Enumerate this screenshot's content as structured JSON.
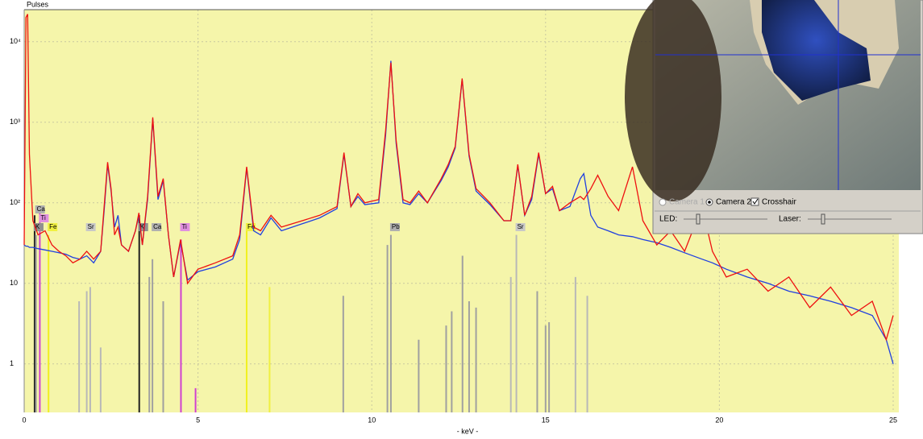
{
  "chart_data": {
    "type": "line",
    "y_label": "Pulses",
    "x_label": "- keV -",
    "log_y": true,
    "grid": true,
    "background": "#f5f5aa",
    "xlim": [
      0,
      25
    ],
    "xticks": [
      0,
      5,
      10,
      15,
      20,
      25
    ],
    "ylim": [
      0.25,
      25000
    ],
    "yticks": [
      1,
      10,
      {
        "value": 100,
        "label": "10²"
      },
      {
        "value": 1000,
        "label": "10³"
      },
      {
        "value": 10000,
        "label": "10⁴"
      }
    ],
    "x": [
      0,
      0.05,
      0.1,
      0.15,
      0.25,
      0.4,
      0.6,
      0.8,
      1.0,
      1.2,
      1.4,
      1.6,
      1.8,
      2.0,
      2.2,
      2.3,
      2.4,
      2.5,
      2.6,
      2.7,
      2.8,
      3.0,
      3.2,
      3.3,
      3.4,
      3.55,
      3.7,
      3.85,
      4.0,
      4.15,
      4.3,
      4.5,
      4.7,
      5.0,
      5.5,
      6.0,
      6.2,
      6.4,
      6.6,
      6.8,
      7.1,
      7.4,
      8.0,
      8.5,
      9.0,
      9.2,
      9.4,
      9.6,
      9.8,
      10.2,
      10.4,
      10.55,
      10.7,
      10.9,
      11.1,
      11.35,
      11.6,
      12.0,
      12.2,
      12.4,
      12.6,
      12.8,
      13.0,
      13.4,
      13.8,
      14.0,
      14.2,
      14.4,
      14.6,
      14.8,
      15.0,
      15.2,
      15.4,
      15.7,
      16.0,
      16.1,
      16.3,
      16.5,
      16.8,
      17.1,
      17.5,
      17.8,
      18.2,
      18.6,
      19.0,
      19.5,
      19.8,
      20.2,
      20.8,
      21.4,
      22.0,
      22.6,
      23.2,
      23.8,
      24.4,
      24.8,
      25.0
    ],
    "series": [
      {
        "color": "#2040e0",
        "values": [
          30,
          29,
          29,
          28,
          28,
          27,
          26,
          25,
          24,
          23,
          21,
          20,
          22,
          18,
          25,
          80,
          300,
          140,
          50,
          70,
          30,
          25,
          45,
          70,
          30,
          110,
          1100,
          110,
          190,
          40,
          12,
          33,
          11,
          14,
          16,
          20,
          35,
          270,
          45,
          40,
          65,
          45,
          55,
          65,
          85,
          400,
          90,
          120,
          95,
          100,
          700,
          5800,
          550,
          100,
          95,
          130,
          100,
          190,
          280,
          480,
          3400,
          380,
          140,
          95,
          60,
          60,
          290,
          70,
          110,
          400,
          130,
          150,
          80,
          90,
          200,
          230,
          70,
          50,
          45,
          40,
          38,
          35,
          32,
          28,
          24,
          20,
          18,
          15,
          12,
          10,
          8,
          7,
          6,
          5,
          4,
          2,
          1
        ]
      },
      {
        "color": "#ee1010",
        "values": [
          30,
          20000,
          22000,
          400,
          60,
          40,
          45,
          30,
          25,
          22,
          18,
          20,
          25,
          20,
          25,
          90,
          320,
          150,
          40,
          50,
          30,
          25,
          45,
          75,
          30,
          120,
          1150,
          120,
          200,
          40,
          12,
          35,
          10,
          15,
          18,
          22,
          40,
          280,
          50,
          45,
          70,
          50,
          60,
          70,
          90,
          420,
          90,
          130,
          100,
          110,
          800,
          5500,
          600,
          110,
          100,
          140,
          100,
          200,
          300,
          500,
          3500,
          400,
          150,
          100,
          60,
          60,
          300,
          70,
          120,
          420,
          130,
          160,
          80,
          100,
          120,
          110,
          150,
          220,
          120,
          80,
          280,
          60,
          30,
          45,
          25,
          90,
          25,
          12,
          15,
          8,
          12,
          5,
          9,
          4,
          6,
          2,
          4
        ]
      }
    ],
    "lines": [
      {
        "x": 0.3,
        "value": 70,
        "color": "#202020",
        "label": "K",
        "label_color": "#909090"
      },
      {
        "x": 0.45,
        "value": 90,
        "color": "#d040d0",
        "label": "Ti",
        "label_color": "#e090e0"
      },
      {
        "x": 0.34,
        "value": 40,
        "color": "#a0a0a0",
        "label": "Ca",
        "label_color": "#b0b0b0"
      },
      {
        "x": 0.7,
        "value": 40,
        "color": "#f0f020",
        "label": "Fe",
        "label_color": "#f0f040"
      },
      {
        "x": 1.8,
        "value": 8,
        "color": "#b8b8b8",
        "label": "Sr",
        "label_color": "#c8c8c8"
      },
      {
        "x": 3.31,
        "value": 70,
        "color": "#202020",
        "label": "K",
        "label_color": "#909090"
      },
      {
        "x": 3.69,
        "value": 20,
        "color": "#a0a0a0",
        "label": "Ca",
        "label_color": "#b0b0b0"
      },
      {
        "x": 4.51,
        "value": 35,
        "color": "#d040d0",
        "label": "Ti",
        "label_color": "#e090e0"
      },
      {
        "x": 6.4,
        "value": 50,
        "color": "#f0f020",
        "label": "Fe",
        "label_color": "#f0f040"
      },
      {
        "x": 10.55,
        "value": 40,
        "color": "#a0a0a0",
        "label": "Pb",
        "label_color": "#b0b0b0"
      },
      {
        "x": 14.16,
        "value": 40,
        "color": "#b8b8b8",
        "label": "Sr",
        "label_color": "#c8c8c8"
      },
      {
        "x": 1.58,
        "value": 6,
        "color": "#b8b8b8"
      },
      {
        "x": 1.9,
        "value": 9,
        "color": "#b8b8b8"
      },
      {
        "x": 2.2,
        "value": 1.6,
        "color": "#b8b8b8"
      },
      {
        "x": 3.6,
        "value": 12,
        "color": "#a0a0a0"
      },
      {
        "x": 4.0,
        "value": 6,
        "color": "#a0a0a0"
      },
      {
        "x": 4.93,
        "value": 0.5,
        "color": "#d040d0"
      },
      {
        "x": 7.06,
        "value": 9,
        "color": "#f0f040"
      },
      {
        "x": 9.18,
        "value": 7,
        "color": "#a0a0a0"
      },
      {
        "x": 10.45,
        "value": 30,
        "color": "#a0a0a0"
      },
      {
        "x": 11.35,
        "value": 2,
        "color": "#a0a0a0"
      },
      {
        "x": 12.14,
        "value": 3,
        "color": "#a0a0a0"
      },
      {
        "x": 12.3,
        "value": 4.5,
        "color": "#a0a0a0"
      },
      {
        "x": 12.61,
        "value": 22,
        "color": "#a0a0a0"
      },
      {
        "x": 12.8,
        "value": 6,
        "color": "#a0a0a0"
      },
      {
        "x": 13.0,
        "value": 5,
        "color": "#a0a0a0"
      },
      {
        "x": 14.0,
        "value": 12,
        "color": "#b8b8b8"
      },
      {
        "x": 14.76,
        "value": 8,
        "color": "#a0a0a0"
      },
      {
        "x": 15.0,
        "value": 3,
        "color": "#a0a0a0"
      },
      {
        "x": 15.1,
        "value": 3.3,
        "color": "#a0a0a0"
      },
      {
        "x": 15.86,
        "value": 12,
        "color": "#b8b8b8"
      },
      {
        "x": 16.2,
        "value": 7,
        "color": "#b8b8b8"
      }
    ]
  },
  "camera_panel": {
    "camera1": "Camera 1",
    "camera2": "Camera 2",
    "crosshair": "Crosshair",
    "led": "LED:",
    "laser": "Laser:"
  }
}
